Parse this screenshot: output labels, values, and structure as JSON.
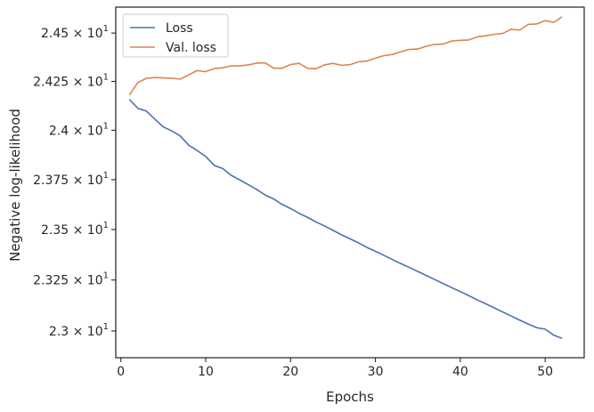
{
  "chart_data": {
    "type": "line",
    "title": "",
    "xlabel": "Epochs",
    "ylabel": "Negative log-likelihood",
    "yscale": "log",
    "xlim": [
      -0.6,
      54.6
    ],
    "ylim": [
      22.87,
      24.635
    ],
    "xticks": [
      0,
      10,
      20,
      30,
      40,
      50
    ],
    "xtick_labels": [
      "0",
      "10",
      "20",
      "30",
      "40",
      "50"
    ],
    "yticks": [
      23.0,
      23.25,
      23.5,
      23.75,
      24.0,
      24.25,
      24.5
    ],
    "ytick_labels": [
      {
        "mantissa": "2.3",
        "exp": "1"
      },
      {
        "mantissa": "2.325",
        "exp": "1"
      },
      {
        "mantissa": "2.35",
        "exp": "1"
      },
      {
        "mantissa": "2.375",
        "exp": "1"
      },
      {
        "mantissa": "2.4",
        "exp": "1"
      },
      {
        "mantissa": "2.425",
        "exp": "1"
      },
      {
        "mantissa": "2.45",
        "exp": "1"
      }
    ],
    "grid": false,
    "legend": "top-left",
    "x": [
      1,
      2,
      3,
      4,
      5,
      6,
      7,
      8,
      9,
      10,
      11,
      12,
      13,
      14,
      15,
      16,
      17,
      18,
      19,
      20,
      21,
      22,
      23,
      24,
      25,
      26,
      27,
      28,
      29,
      30,
      31,
      32,
      33,
      34,
      35,
      36,
      37,
      38,
      39,
      40,
      41,
      42,
      43,
      44,
      45,
      46,
      47,
      48,
      49,
      50,
      51,
      52
    ],
    "series": [
      {
        "name": "Loss",
        "color": "#4c72b0",
        "values": [
          24.158,
          24.112,
          24.098,
          24.057,
          24.017,
          23.997,
          23.971,
          23.924,
          23.897,
          23.867,
          23.822,
          23.806,
          23.772,
          23.749,
          23.725,
          23.701,
          23.673,
          23.653,
          23.626,
          23.605,
          23.581,
          23.561,
          23.538,
          23.518,
          23.496,
          23.474,
          23.454,
          23.434,
          23.411,
          23.392,
          23.372,
          23.351,
          23.331,
          23.312,
          23.292,
          23.272,
          23.252,
          23.232,
          23.212,
          23.193,
          23.173,
          23.152,
          23.133,
          23.113,
          23.093,
          23.073,
          23.053,
          23.034,
          23.016,
          23.009,
          22.98,
          22.964
        ]
      },
      {
        "name": "Val. loss",
        "color": "#dd8452",
        "values": [
          24.18,
          24.244,
          24.266,
          24.27,
          24.268,
          24.266,
          24.262,
          24.284,
          24.306,
          24.3,
          24.316,
          24.32,
          24.33,
          24.33,
          24.335,
          24.344,
          24.346,
          24.318,
          24.318,
          24.337,
          24.343,
          24.318,
          24.315,
          24.335,
          24.343,
          24.333,
          24.336,
          24.351,
          24.355,
          24.37,
          24.383,
          24.389,
          24.403,
          24.415,
          24.417,
          24.432,
          24.441,
          24.443,
          24.459,
          24.462,
          24.464,
          24.48,
          24.486,
          24.493,
          24.498,
          24.52,
          24.515,
          24.545,
          24.547,
          24.565,
          24.555,
          24.585
        ]
      }
    ]
  }
}
